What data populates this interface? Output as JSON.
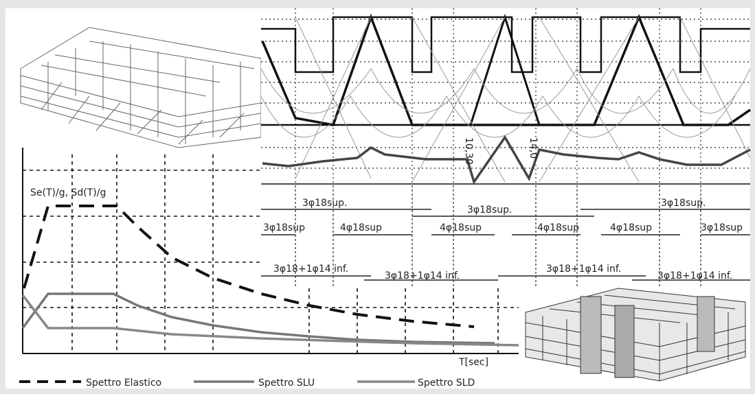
{
  "spectrum": {
    "y_label": "Se(T)/g, Sd(T)/g",
    "x_label": "T[sec]",
    "legend": [
      "Spettro Elastico",
      "Spettro SLU",
      "Spettro SLD"
    ]
  },
  "beam": {
    "sections": [
      "10,30",
      "14,0"
    ],
    "top_rebars": [
      "3φ18sup.",
      "3φ18sup.",
      "3φ18sup."
    ],
    "mid_rebars": [
      "3φ18sup",
      "4φ18sup",
      "4φ18sup",
      "4φ18sup",
      "4φ18sup",
      "3φ18sup"
    ],
    "bottom_rebars": [
      "3φ18+1φ14 inf.",
      "3φ18+1φ14 inf.",
      "3φ18+1φ14 inf.",
      "3φ18+1φ14 inf."
    ]
  }
}
